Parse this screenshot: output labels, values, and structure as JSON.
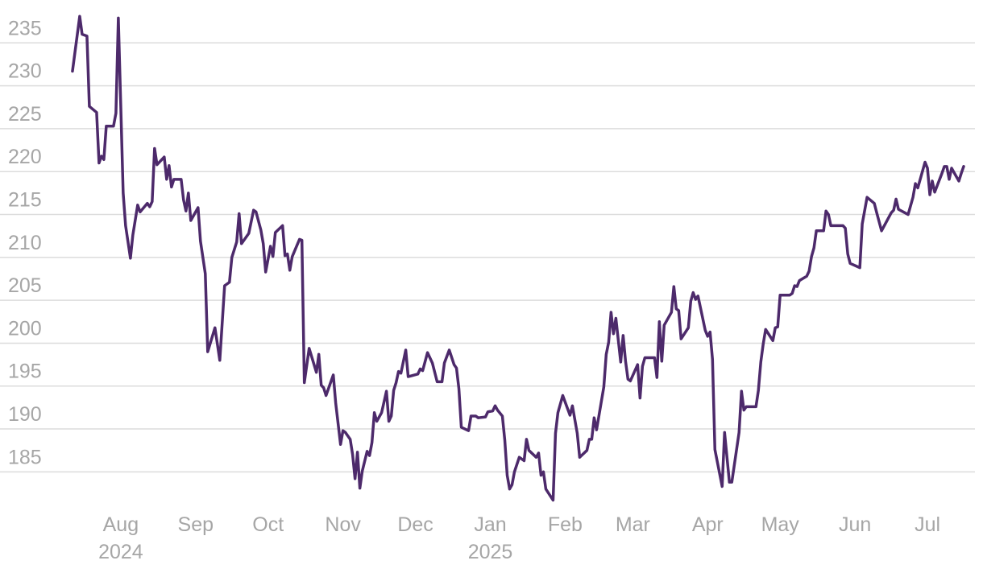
{
  "chart_data": {
    "type": "line",
    "color": "#4d2a6b",
    "grid": true,
    "xlim": [
      "2024-06-12",
      "2025-07-24"
    ],
    "xticks": [
      {
        "value": "2024-08-01",
        "label": "Aug",
        "sublabel": "2024"
      },
      {
        "value": "2024-09-01",
        "label": "Sep"
      },
      {
        "value": "2024-10-01",
        "label": "Oct"
      },
      {
        "value": "2024-11-01",
        "label": "Nov"
      },
      {
        "value": "2024-12-01",
        "label": "Dec"
      },
      {
        "value": "2025-01-01",
        "label": "Jan",
        "sublabel": "2025"
      },
      {
        "value": "2025-02-01",
        "label": "Feb"
      },
      {
        "value": "2025-03-01",
        "label": "Mar"
      },
      {
        "value": "2025-04-01",
        "label": "Apr"
      },
      {
        "value": "2025-05-01",
        "label": "May"
      },
      {
        "value": "2025-06-01",
        "label": "Jun"
      },
      {
        "value": "2025-07-01",
        "label": "Jul"
      }
    ],
    "ylim": [
      181,
      240
    ],
    "yticks": [
      185,
      190,
      195,
      200,
      205,
      210,
      215,
      220,
      225,
      230,
      235
    ],
    "x": [
      "2024-07-12",
      "2024-07-15",
      "2024-07-16",
      "2024-07-18",
      "2024-07-19",
      "2024-07-22",
      "2024-07-23",
      "2024-07-24",
      "2024-07-25",
      "2024-07-26",
      "2024-07-29",
      "2024-07-30",
      "2024-07-31",
      "2024-08-02",
      "2024-08-03",
      "2024-08-05",
      "2024-08-06",
      "2024-08-08",
      "2024-08-09",
      "2024-08-12",
      "2024-08-13",
      "2024-08-14",
      "2024-08-15",
      "2024-08-16",
      "2024-08-19",
      "2024-08-20",
      "2024-08-21",
      "2024-08-22",
      "2024-08-23",
      "2024-08-26",
      "2024-08-27",
      "2024-08-28",
      "2024-08-29",
      "2024-08-30",
      "2024-09-02",
      "2024-09-03",
      "2024-09-05",
      "2024-09-06",
      "2024-09-09",
      "2024-09-11",
      "2024-09-13",
      "2024-09-15",
      "2024-09-16",
      "2024-09-18",
      "2024-09-19",
      "2024-09-20",
      "2024-09-23",
      "2024-09-25",
      "2024-09-26",
      "2024-09-28",
      "2024-09-29",
      "2024-09-30",
      "2024-10-02",
      "2024-10-03",
      "2024-10-04",
      "2024-10-07",
      "2024-10-08",
      "2024-10-09",
      "2024-10-10",
      "2024-10-11",
      "2024-10-14",
      "2024-10-15",
      "2024-10-16",
      "2024-10-18",
      "2024-10-21",
      "2024-10-22",
      "2024-10-23",
      "2024-10-24",
      "2024-10-25",
      "2024-10-28",
      "2024-10-29",
      "2024-10-31",
      "2024-11-01",
      "2024-11-02",
      "2024-11-04",
      "2024-11-05",
      "2024-11-06",
      "2024-11-07",
      "2024-11-08",
      "2024-11-09",
      "2024-11-11",
      "2024-11-12",
      "2024-11-13",
      "2024-11-14",
      "2024-11-15",
      "2024-11-17",
      "2024-11-19",
      "2024-11-20",
      "2024-11-21",
      "2024-11-22",
      "2024-11-23",
      "2024-11-24",
      "2024-11-25",
      "2024-11-27",
      "2024-11-28",
      "2024-12-02",
      "2024-12-03",
      "2024-12-04",
      "2024-12-06",
      "2024-12-08",
      "2024-12-09",
      "2024-12-10",
      "2024-12-12",
      "2024-12-13",
      "2024-12-15",
      "2024-12-17",
      "2024-12-18",
      "2024-12-19",
      "2024-12-20",
      "2024-12-23",
      "2024-12-24",
      "2024-12-26",
      "2024-12-27",
      "2024-12-30",
      "2024-12-31",
      "2025-01-02",
      "2025-01-03",
      "2025-01-04",
      "2025-01-06",
      "2025-01-07",
      "2025-01-08",
      "2025-01-09",
      "2025-01-10",
      "2025-01-11",
      "2025-01-13",
      "2025-01-15",
      "2025-01-16",
      "2025-01-17",
      "2025-01-20",
      "2025-01-21",
      "2025-01-22",
      "2025-01-23",
      "2025-01-24",
      "2025-01-27",
      "2025-01-28",
      "2025-01-29",
      "2025-01-31",
      "2025-02-03",
      "2025-02-04",
      "2025-02-06",
      "2025-02-07",
      "2025-02-10",
      "2025-02-11",
      "2025-02-12",
      "2025-02-13",
      "2025-02-14",
      "2025-02-17",
      "2025-02-18",
      "2025-02-19",
      "2025-02-20",
      "2025-02-21",
      "2025-02-22",
      "2025-02-24",
      "2025-02-25",
      "2025-02-26",
      "2025-02-27",
      "2025-02-28",
      "2025-03-03",
      "2025-03-04",
      "2025-03-05",
      "2025-03-06",
      "2025-03-10",
      "2025-03-11",
      "2025-03-12",
      "2025-03-13",
      "2025-03-14",
      "2025-03-17",
      "2025-03-18",
      "2025-03-19",
      "2025-03-20",
      "2025-03-21",
      "2025-03-24",
      "2025-03-25",
      "2025-03-26",
      "2025-03-27",
      "2025-03-28",
      "2025-03-31",
      "2025-04-01",
      "2025-04-02",
      "2025-04-03",
      "2025-04-04",
      "2025-04-07",
      "2025-04-08",
      "2025-04-10",
      "2025-04-11",
      "2025-04-14",
      "2025-04-15",
      "2025-04-16",
      "2025-04-17",
      "2025-04-21",
      "2025-04-22",
      "2025-04-23",
      "2025-04-24",
      "2025-04-25",
      "2025-04-28",
      "2025-04-29",
      "2025-04-30",
      "2025-05-01",
      "2025-05-05",
      "2025-05-06",
      "2025-05-07",
      "2025-05-08",
      "2025-05-09",
      "2025-05-12",
      "2025-05-13",
      "2025-05-14",
      "2025-05-15",
      "2025-05-16",
      "2025-05-19",
      "2025-05-20",
      "2025-05-21",
      "2025-05-22",
      "2025-05-27",
      "2025-05-28",
      "2025-05-29",
      "2025-05-30",
      "2025-06-03",
      "2025-06-04",
      "2025-06-06",
      "2025-06-09",
      "2025-06-10",
      "2025-06-12",
      "2025-06-16",
      "2025-06-17",
      "2025-06-18",
      "2025-06-19",
      "2025-06-23",
      "2025-06-25",
      "2025-06-26",
      "2025-06-27",
      "2025-06-30",
      "2025-07-01",
      "2025-07-02",
      "2025-07-03",
      "2025-07-04",
      "2025-07-07",
      "2025-07-08",
      "2025-07-09",
      "2025-07-10",
      "2025-07-11",
      "2025-07-14",
      "2025-07-15",
      "2025-07-16"
    ],
    "values": [
      231.7,
      238.1,
      236.0,
      235.8,
      227.6,
      226.9,
      221.0,
      221.8,
      221.4,
      225.3,
      225.3,
      226.8,
      237.9,
      217.5,
      213.7,
      209.9,
      212.6,
      216.1,
      215.3,
      216.3,
      215.9,
      216.5,
      222.7,
      220.8,
      221.7,
      219.1,
      220.7,
      218.2,
      219.1,
      219.1,
      216.7,
      215.4,
      217.5,
      214.3,
      215.8,
      211.9,
      208.1,
      199.0,
      201.8,
      198.0,
      206.7,
      207.1,
      210.0,
      211.8,
      215.1,
      211.6,
      212.8,
      215.5,
      215.3,
      213.2,
      211.6,
      208.3,
      211.3,
      210.1,
      212.9,
      213.7,
      210.2,
      210.4,
      208.5,
      210.1,
      212.1,
      212.0,
      195.4,
      199.4,
      196.6,
      198.7,
      195.1,
      194.8,
      193.9,
      196.3,
      193.0,
      188.2,
      189.8,
      189.6,
      188.8,
      187.0,
      184.2,
      187.3,
      183.1,
      185.1,
      187.4,
      186.9,
      188.4,
      191.9,
      190.9,
      191.9,
      194.4,
      190.9,
      191.5,
      194.5,
      195.4,
      196.7,
      196.5,
      199.2,
      196.1,
      196.4,
      197.0,
      196.8,
      198.9,
      197.7,
      196.6,
      195.5,
      195.5,
      197.7,
      199.2,
      197.5,
      197.1,
      194.7,
      190.2,
      189.8,
      191.5,
      191.5,
      191.3,
      191.4,
      192.0,
      192.1,
      192.7,
      192.2,
      191.5,
      188.7,
      184.6,
      183.0,
      183.5,
      185.0,
      186.7,
      186.3,
      188.8,
      187.5,
      186.7,
      187.2,
      184.6,
      185.0,
      183.0,
      181.7,
      189.5,
      191.9,
      193.9,
      191.6,
      192.7,
      189.5,
      186.7,
      187.5,
      188.8,
      188.8,
      191.3,
      189.9,
      194.9,
      198.7,
      200.1,
      203.6,
      201.1,
      202.9,
      197.8,
      200.9,
      197.9,
      195.8,
      195.6,
      197.5,
      193.6,
      197.3,
      198.3,
      198.3,
      196.0,
      202.5,
      197.9,
      202.1,
      203.6,
      206.6,
      204.0,
      203.8,
      200.5,
      201.8,
      204.9,
      205.9,
      205.1,
      205.5,
      201.5,
      200.8,
      201.3,
      198.1,
      187.6,
      183.3,
      189.6,
      183.8,
      183.8,
      189.6,
      194.4,
      192.2,
      192.6,
      192.6,
      194.5,
      197.8,
      199.9,
      201.6,
      200.3,
      201.8,
      201.9,
      205.6,
      205.6,
      205.8,
      206.7,
      206.6,
      207.3,
      207.8,
      208.4,
      210.1,
      211.1,
      213.1,
      213.1,
      215.4,
      215.0,
      213.7,
      213.7,
      213.4,
      210.4,
      209.3,
      208.8,
      213.9,
      217.0,
      216.3,
      215.2,
      213.1,
      215.2,
      215.5,
      216.8,
      215.6,
      215.0,
      217.0,
      218.6,
      218.1,
      221.1,
      220.4,
      217.3,
      218.9,
      217.6,
      219.8,
      220.6,
      220.6,
      219.1,
      220.4,
      218.9,
      219.8,
      220.6
    ]
  }
}
